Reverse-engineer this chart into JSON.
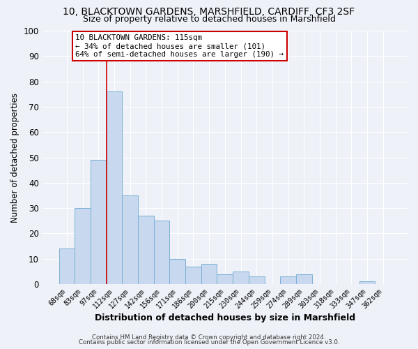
{
  "title": "10, BLACKTOWN GARDENS, MARSHFIELD, CARDIFF, CF3 2SF",
  "subtitle": "Size of property relative to detached houses in Marshfield",
  "xlabel": "Distribution of detached houses by size in Marshfield",
  "ylabel": "Number of detached properties",
  "bar_color": "#c8d8ee",
  "bar_edge_color": "#7aafd4",
  "bg_color": "#eef2f8",
  "grid_color": "#ffffff",
  "categories": [
    "68sqm",
    "83sqm",
    "97sqm",
    "112sqm",
    "127sqm",
    "142sqm",
    "156sqm",
    "171sqm",
    "186sqm",
    "200sqm",
    "215sqm",
    "230sqm",
    "244sqm",
    "259sqm",
    "274sqm",
    "289sqm",
    "303sqm",
    "318sqm",
    "333sqm",
    "347sqm",
    "362sqm"
  ],
  "values": [
    14,
    30,
    49,
    76,
    35,
    27,
    25,
    10,
    7,
    8,
    4,
    5,
    3,
    0,
    3,
    4,
    0,
    0,
    0,
    1,
    0
  ],
  "ylim": [
    0,
    100
  ],
  "yticks": [
    0,
    10,
    20,
    30,
    40,
    50,
    60,
    70,
    80,
    90,
    100
  ],
  "vline_index": 3,
  "vline_color": "#cc0000",
  "annotation_title": "10 BLACKTOWN GARDENS: 115sqm",
  "annotation_line1": "← 34% of detached houses are smaller (101)",
  "annotation_line2": "64% of semi-detached houses are larger (190) →",
  "annotation_box_color": "#ffffff",
  "annotation_box_edge_color": "#cc0000",
  "footer_line1": "Contains HM Land Registry data © Crown copyright and database right 2024.",
  "footer_line2": "Contains public sector information licensed under the Open Government Licence v3.0."
}
